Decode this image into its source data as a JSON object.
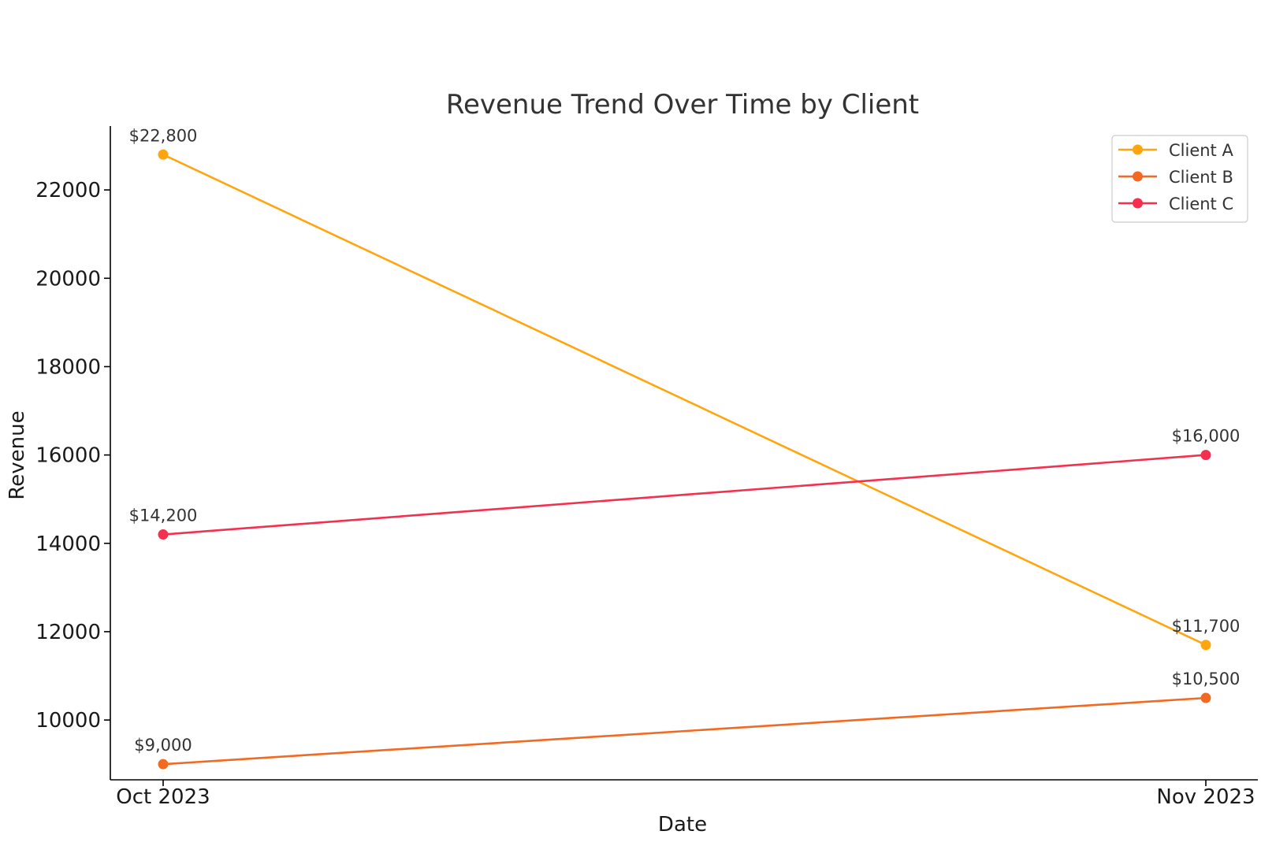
{
  "chart_data": {
    "type": "line",
    "title": "Revenue Trend Over Time by Client",
    "xlabel": "Date",
    "ylabel": "Revenue",
    "categories": [
      "Oct 2023",
      "Nov 2023"
    ],
    "ylim": [
      8700,
      23500
    ],
    "yticks": [
      10000,
      12000,
      14000,
      16000,
      18000,
      20000,
      22000
    ],
    "grid": false,
    "legend_position": "top-right",
    "series": [
      {
        "name": "Client A",
        "color": "#FFA50F",
        "values": [
          22800,
          11700
        ],
        "labels": [
          "$22,800",
          "$11,700"
        ]
      },
      {
        "name": "Client B",
        "color": "#F26922",
        "values": [
          9000,
          10500
        ],
        "labels": [
          "$9,000",
          "$10,500"
        ]
      },
      {
        "name": "Client C",
        "color": "#F5304F",
        "values": [
          14200,
          16000
        ],
        "labels": [
          "$14,200",
          "$16,000"
        ]
      }
    ]
  }
}
